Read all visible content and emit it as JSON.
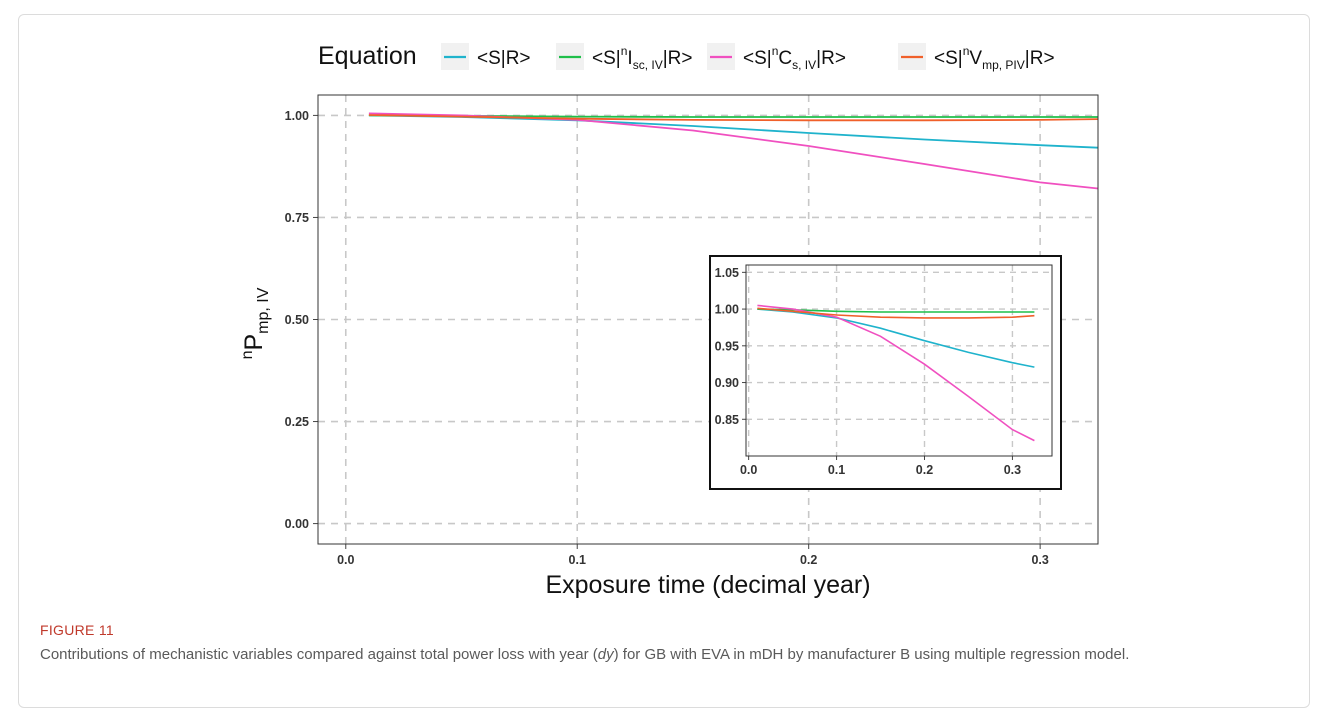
{
  "figure": {
    "label": "FIGURE 11",
    "caption_before": "Contributions of mechanistic variables compared against total power loss with year (",
    "caption_italic": "dy",
    "caption_after": ") for GB with EVA in mDH by manufacturer B using multiple regression model."
  },
  "colors": {
    "series_S_R": "#1fb3cc",
    "series_Isc": "#1fbf4a",
    "series_Cs": "#f050c0",
    "series_Vmp": "#f0602a",
    "grid": "#c8c8c8",
    "axis": "#444444"
  },
  "chart_data": [
    {
      "type": "line",
      "title": "",
      "xlabel": "Exposure time (decimal year)",
      "ylabel": "nP",
      "ylabel_sub": "mp, IV",
      "xlim": [
        -0.012,
        0.325
      ],
      "ylim": [
        -0.05,
        1.05
      ],
      "xticks": [
        0.0,
        0.1,
        0.2,
        0.3
      ],
      "xtick_labels": [
        "0.0",
        "0.1",
        "0.2",
        "0.3"
      ],
      "yticks": [
        0.0,
        0.25,
        0.5,
        0.75,
        1.0
      ],
      "ytick_labels": [
        "0.00",
        "0.25",
        "0.50",
        "0.75",
        "1.00"
      ],
      "grid": true,
      "legend": {
        "title": "Equation",
        "placement": "top",
        "entries": [
          {
            "pre": "<S|R>",
            "sup": "",
            "base": "",
            "sub": "",
            "post": ""
          },
          {
            "pre": "<S|",
            "sup": "n",
            "base": "I",
            "sub": "sc, IV",
            "post": "|R>"
          },
          {
            "pre": "<S|",
            "sup": "n",
            "base": "C",
            "sub": "s, IV",
            "post": "|R>"
          },
          {
            "pre": "<S|",
            "sup": "n",
            "base": "V",
            "sub": "mp, PIV",
            "post": "|R>"
          }
        ]
      },
      "x": [
        0.01,
        0.05,
        0.1,
        0.15,
        0.2,
        0.25,
        0.3,
        0.325
      ],
      "series": [
        {
          "name": "<S|R>",
          "values": [
            1.0,
            0.996,
            0.988,
            0.974,
            0.957,
            0.941,
            0.927,
            0.921
          ]
        },
        {
          "name": "<S|nIsc, IV|R>",
          "values": [
            1.0,
            0.999,
            0.997,
            0.996,
            0.996,
            0.996,
            0.996,
            0.996
          ]
        },
        {
          "name": "<S|nCs, IV|R>",
          "values": [
            1.005,
            1.0,
            0.989,
            0.963,
            0.925,
            0.881,
            0.836,
            0.821
          ]
        },
        {
          "name": "<S|nVmp, PIV|R>",
          "values": [
            1.001,
            0.997,
            0.992,
            0.989,
            0.988,
            0.988,
            0.989,
            0.991
          ]
        }
      ]
    },
    {
      "type": "line",
      "title": "",
      "xlabel": "",
      "ylabel": "",
      "xlim": [
        -0.003,
        0.345
      ],
      "ylim": [
        0.8,
        1.06
      ],
      "xticks": [
        0.0,
        0.1,
        0.2,
        0.3
      ],
      "xtick_labels": [
        "0.0",
        "0.1",
        "0.2",
        "0.3"
      ],
      "yticks": [
        0.85,
        0.9,
        0.95,
        1.0,
        1.05
      ],
      "ytick_labels": [
        "0.85",
        "0.90",
        "0.95",
        "1.00",
        "1.05"
      ],
      "grid": true,
      "x": [
        0.01,
        0.05,
        0.1,
        0.15,
        0.2,
        0.25,
        0.3,
        0.325
      ],
      "series": [
        {
          "name": "<S|R>",
          "values": [
            1.0,
            0.996,
            0.988,
            0.974,
            0.957,
            0.941,
            0.927,
            0.921
          ]
        },
        {
          "name": "<S|nIsc, IV|R>",
          "values": [
            1.0,
            0.999,
            0.997,
            0.996,
            0.996,
            0.996,
            0.996,
            0.996
          ]
        },
        {
          "name": "<S|nCs, IV|R>",
          "values": [
            1.005,
            1.0,
            0.989,
            0.963,
            0.925,
            0.881,
            0.836,
            0.821
          ]
        },
        {
          "name": "<S|nVmp, PIV|R>",
          "values": [
            1.001,
            0.997,
            0.992,
            0.989,
            0.988,
            0.988,
            0.989,
            0.991
          ]
        }
      ]
    }
  ]
}
